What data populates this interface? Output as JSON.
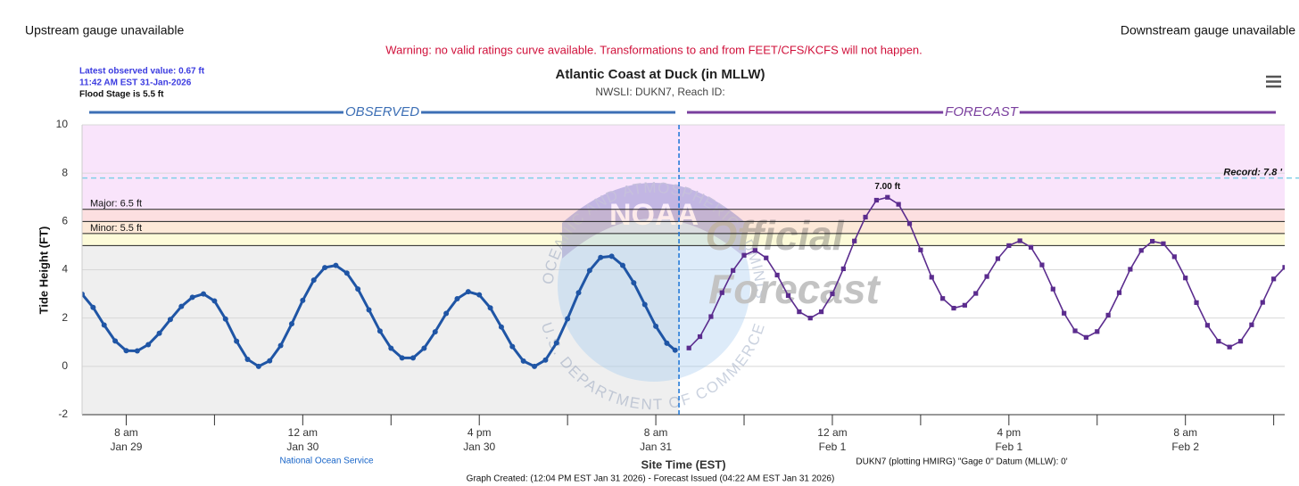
{
  "header": {
    "upstream": "Upstream gauge unavailable",
    "downstream": "Downstream gauge unavailable",
    "warning": "Warning: no valid ratings curve available. Transformations to and from FEET/CFS/KCFS will not happen."
  },
  "info": {
    "latest": "Latest observed value: 0.67 ft",
    "time": "11:42 AM EST 31-Jan-2026",
    "flood": "Flood Stage is 5.5 ft"
  },
  "chart_data": {
    "type": "line",
    "title": "Atlantic Coast at Duck (in MLLW)",
    "subtitle": "NWSLI: DUKN7, Reach ID:",
    "y_label": "Tide Height (FT)",
    "x_label": "Site Time (EST)",
    "xlim": [
      "Jan 29 04:00",
      "Feb 2 17:00"
    ],
    "xticks": [
      {
        "value": "Jan 29 08:00",
        "label": [
          "8 am",
          "Jan 29"
        ]
      },
      {
        "value": "Jan 30 00:00",
        "label": [
          "12 am",
          "Jan 30"
        ]
      },
      {
        "value": "Jan 30 16:00",
        "label": [
          "4 pm",
          "Jan 30"
        ]
      },
      {
        "value": "Jan 31 08:00",
        "label": [
          "8 am",
          "Jan 31"
        ]
      },
      {
        "value": "Feb 1 00:00",
        "label": [
          "12 am",
          "Feb 1"
        ]
      },
      {
        "value": "Feb 1 16:00",
        "label": [
          "4 pm",
          "Feb 1"
        ]
      },
      {
        "value": "Feb 2 08:00",
        "label": [
          "8 am",
          "Feb 2"
        ]
      }
    ],
    "xminorticks": [
      "Jan 29 16:00",
      "Jan 30 08:00",
      "Jan 31 00:00",
      "Jan 31 16:00",
      "Feb 1 08:00",
      "Feb 2 00:00",
      "Feb 2 16:00"
    ],
    "ylim": [
      -2,
      10
    ],
    "yticks": [
      -2,
      0,
      2,
      4,
      6,
      8,
      10
    ],
    "grid": true,
    "now": "Jan 31 10:06",
    "observed_background": "#efefef",
    "thresholds": [
      {
        "value": 6.5,
        "label": "Major: 6.5 ft",
        "color": "#f9e4fb"
      },
      {
        "value": 6.0,
        "color": "#fcdfe0"
      },
      {
        "value": 5.5,
        "label": "Minor: 5.5 ft",
        "color": "#fde9d8"
      },
      {
        "value": 5.0,
        "color": "#fdfbd9"
      }
    ],
    "record": {
      "value": 7.8,
      "label": "Record: 7.8 '"
    },
    "series": [
      {
        "name": "OBSERVED",
        "color": "#1f55a5",
        "marker": "circle",
        "x": [
          "Jan 29 04:00",
          "Jan 29 05:00",
          "Jan 29 06:00",
          "Jan 29 07:00",
          "Jan 29 08:00",
          "Jan 29 09:00",
          "Jan 29 10:00",
          "Jan 29 11:00",
          "Jan 29 12:00",
          "Jan 29 13:00",
          "Jan 29 14:00",
          "Jan 29 15:00",
          "Jan 29 16:00",
          "Jan 29 17:00",
          "Jan 29 18:00",
          "Jan 29 19:00",
          "Jan 29 20:00",
          "Jan 29 21:00",
          "Jan 29 22:00",
          "Jan 29 23:00",
          "Jan 30 00:00",
          "Jan 30 01:00",
          "Jan 30 02:00",
          "Jan 30 03:00",
          "Jan 30 04:00",
          "Jan 30 05:00",
          "Jan 30 06:00",
          "Jan 30 07:00",
          "Jan 30 08:00",
          "Jan 30 09:00",
          "Jan 30 10:00",
          "Jan 30 11:00",
          "Jan 30 12:00",
          "Jan 30 13:00",
          "Jan 30 14:00",
          "Jan 30 15:00",
          "Jan 30 16:00",
          "Jan 30 17:00",
          "Jan 30 18:00",
          "Jan 30 19:00",
          "Jan 30 20:00",
          "Jan 30 21:00",
          "Jan 30 22:00",
          "Jan 30 23:00",
          "Jan 31 00:00",
          "Jan 31 01:00",
          "Jan 31 02:00",
          "Jan 31 03:00",
          "Jan 31 04:00",
          "Jan 31 05:00",
          "Jan 31 06:00",
          "Jan 31 07:00",
          "Jan 31 08:00",
          "Jan 31 09:00",
          "Jan 31 09:45"
        ],
        "values": [
          2.99,
          2.44,
          1.71,
          1.05,
          0.65,
          0.64,
          0.9,
          1.37,
          1.94,
          2.48,
          2.86,
          3.0,
          2.71,
          1.96,
          1.04,
          0.29,
          0.0,
          0.23,
          0.86,
          1.76,
          2.73,
          3.57,
          4.09,
          4.18,
          3.86,
          3.2,
          2.34,
          1.46,
          0.75,
          0.35,
          0.35,
          0.75,
          1.43,
          2.19,
          2.8,
          3.09,
          2.96,
          2.42,
          1.63,
          0.82,
          0.22,
          0.0,
          0.26,
          0.97,
          1.97,
          3.05,
          3.97,
          4.51,
          4.56,
          4.18,
          3.46,
          2.56,
          1.66,
          0.96,
          0.67
        ]
      },
      {
        "name": "FORECAST",
        "color": "#5b2c8e",
        "marker": "square",
        "x": [
          "Jan 31 11:00",
          "Jan 31 12:00",
          "Jan 31 13:00",
          "Jan 31 14:00",
          "Jan 31 15:00",
          "Jan 31 16:00",
          "Jan 31 17:00",
          "Jan 31 18:00",
          "Jan 31 19:00",
          "Jan 31 20:00",
          "Jan 31 21:00",
          "Jan 31 22:00",
          "Jan 31 23:00",
          "Feb 1 00:00",
          "Feb 1 01:00",
          "Feb 1 02:00",
          "Feb 1 03:00",
          "Feb 1 04:00",
          "Feb 1 05:00",
          "Feb 1 06:00",
          "Feb 1 07:00",
          "Feb 1 08:00",
          "Feb 1 09:00",
          "Feb 1 10:00",
          "Feb 1 11:00",
          "Feb 1 12:00",
          "Feb 1 13:00",
          "Feb 1 14:00",
          "Feb 1 15:00",
          "Feb 1 16:00",
          "Feb 1 17:00",
          "Feb 1 18:00",
          "Feb 1 19:00",
          "Feb 1 20:00",
          "Feb 1 21:00",
          "Feb 1 22:00",
          "Feb 1 23:00",
          "Feb 2 00:00",
          "Feb 2 01:00",
          "Feb 2 02:00",
          "Feb 2 03:00",
          "Feb 2 04:00",
          "Feb 2 05:00",
          "Feb 2 06:00",
          "Feb 2 07:00",
          "Feb 2 08:00",
          "Feb 2 09:00",
          "Feb 2 10:00",
          "Feb 2 11:00",
          "Feb 2 12:00",
          "Feb 2 13:00",
          "Feb 2 14:00",
          "Feb 2 15:00",
          "Feb 2 16:00",
          "Feb 2 17:00"
        ],
        "values": [
          0.76,
          1.23,
          2.06,
          3.05,
          3.97,
          4.6,
          4.8,
          4.49,
          3.78,
          2.93,
          2.26,
          2.0,
          2.26,
          3.0,
          4.04,
          5.19,
          6.18,
          6.88,
          7.0,
          6.71,
          5.91,
          4.82,
          3.69,
          2.81,
          2.41,
          2.53,
          3.02,
          3.72,
          4.46,
          5.0,
          5.2,
          4.93,
          4.2,
          3.2,
          2.2,
          1.47,
          1.2,
          1.44,
          2.12,
          3.05,
          4.02,
          4.8,
          5.18,
          5.08,
          4.54,
          3.66,
          2.64,
          1.7,
          1.04,
          0.8,
          1.04,
          1.72,
          2.65,
          3.62,
          4.1
        ],
        "value_labels": [
          null,
          null,
          null,
          null,
          null,
          null,
          null,
          null,
          null,
          null,
          null,
          null,
          null,
          null,
          null,
          null,
          null,
          null,
          "7.00 ft",
          null,
          null,
          null,
          null,
          null,
          null,
          null,
          null,
          null,
          null,
          null,
          null,
          null,
          null,
          null,
          null,
          null,
          null,
          null,
          null,
          null,
          null,
          null,
          null,
          null,
          null,
          null,
          null,
          null,
          null,
          null,
          null,
          null,
          null,
          null,
          null
        ]
      }
    ],
    "annotations": {
      "source": "National Ocean Service",
      "datum": "DUKN7 (plotting HMIRG) \"Gage 0\" Datum (MLLW): 0'",
      "footer": "Graph Created: (12:04 PM EST Jan 31 2026) - Forecast Issued (04:22 AM EST Jan 31 2026)"
    },
    "watermark": {
      "logo": "NOAA",
      "ring_top": "NATIONAL OCEANIC AND ATMOSPHERIC ADMINISTRATION",
      "ring_bottom": "U.S. DEPARTMENT OF COMMERCE",
      "lines": [
        "Official",
        "Forecast"
      ]
    }
  }
}
